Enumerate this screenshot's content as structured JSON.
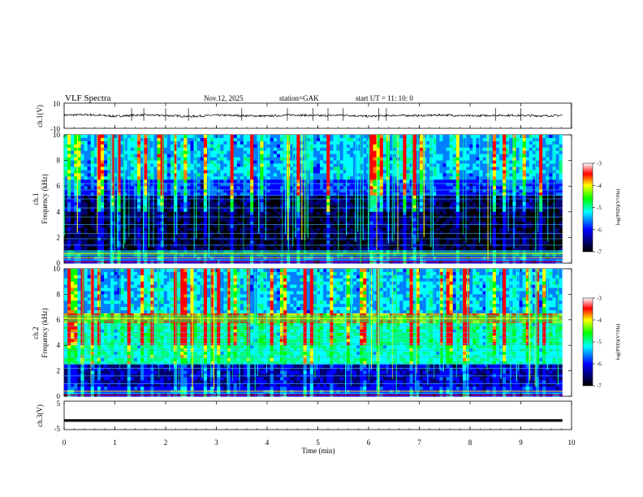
{
  "header": {
    "title": "VLF  Spectra",
    "date": "Nov.12, 2025",
    "station": "station=GAK",
    "start_ut": "start  UT  =    11: 10: 0"
  },
  "colorbar": {
    "label": "log(PSD)(V²/Hz)",
    "ticks": [
      "-3",
      "-4",
      "-5",
      "-6",
      "-7"
    ],
    "colors": [
      "#ffffff",
      "#ff0000",
      "#ffff00",
      "#00ff00",
      "#00ffff",
      "#0000ff",
      "#000060",
      "#000000"
    ]
  },
  "chart_data": [
    {
      "type": "line",
      "name": "ch1-waveform",
      "ylabel": "ch.1(V)",
      "yticks": [
        "10",
        "-10"
      ],
      "ylim": [
        -10,
        10
      ],
      "x": [
        0,
        0.5,
        1.0,
        1.5,
        2.0,
        2.5,
        3.0,
        3.5,
        4.0,
        4.5,
        5.0,
        5.5,
        6.0,
        6.5,
        7.0,
        7.5,
        8.0,
        8.5,
        9.0,
        9.5,
        9.82
      ],
      "y": [
        0.5,
        0.8,
        -0.4,
        0.6,
        0.2,
        -0.6,
        0.4,
        0.1,
        -0.3,
        0.7,
        0.0,
        0.5,
        -0.5,
        0.3,
        0.1,
        0.6,
        -0.2,
        0.4,
        0.2,
        -0.1,
        0.3
      ],
      "spikes_x": [
        1.33,
        1.57,
        2.0,
        2.45,
        3.5,
        4.4,
        4.9,
        5.2,
        5.5,
        6.2,
        6.35,
        8.5,
        9.0
      ]
    },
    {
      "type": "heatmap",
      "name": "ch1-spectrogram",
      "ylabel": "ch.1\nFrequency  (kHz)",
      "yticks": [
        "0",
        "2",
        "4",
        "6",
        "8",
        "10"
      ],
      "ylim": [
        0,
        10
      ],
      "xlim": [
        0,
        9.82
      ],
      "quiet_band_khz": [
        1.0,
        5.2
      ],
      "bright_band_khz": [
        0.5,
        1.0
      ],
      "horizontal_lines_khz": [
        1.4,
        1.9,
        2.3,
        3.0,
        3.6,
        4.3,
        5.0,
        5.3,
        5.7,
        6.2
      ]
    },
    {
      "type": "heatmap",
      "name": "ch2-spectrogram",
      "ylabel": "ch.2\nFrequency  (kHz)",
      "yticks": [
        "0",
        "2",
        "4",
        "6",
        "8",
        "10"
      ],
      "ylim": [
        0,
        10
      ],
      "xlim": [
        0,
        9.82
      ],
      "quiet_band_khz": [
        0.8,
        2.6
      ],
      "bright_band_khz": [
        5.8,
        6.4
      ],
      "horizontal_lines_khz": [
        1.0,
        1.6,
        2.2,
        2.6,
        3.1,
        3.6,
        4.1,
        4.6,
        5.0,
        5.5
      ]
    },
    {
      "type": "line",
      "name": "ch3-waveform",
      "ylabel": "ch.3(V)",
      "yticks": [
        "5",
        "-5"
      ],
      "ylim": [
        -5,
        5
      ],
      "x": [
        0,
        9.82
      ],
      "y": [
        -1.8,
        -1.8
      ]
    }
  ],
  "xaxis": {
    "label": "Time  (min)",
    "ticks": [
      "0",
      "1",
      "2",
      "3",
      "4",
      "5",
      "6",
      "7",
      "8",
      "9",
      "10"
    ],
    "xlim": [
      0,
      10
    ]
  }
}
